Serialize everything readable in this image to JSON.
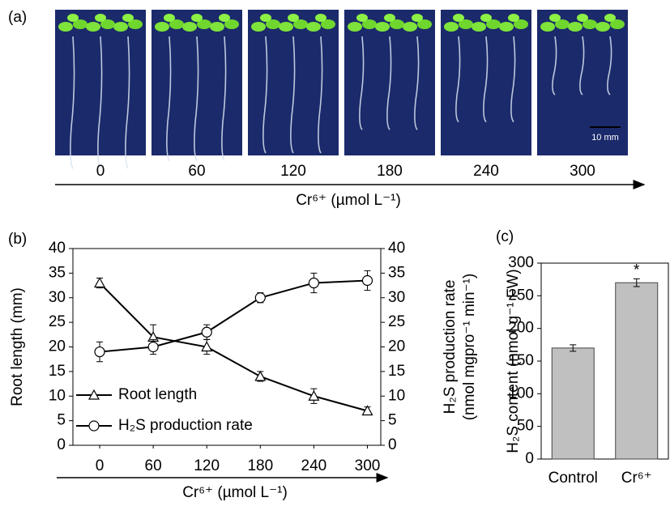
{
  "panel_a": {
    "label": "(a)",
    "categories": [
      "0",
      "60",
      "120",
      "180",
      "240",
      "300"
    ],
    "axis_label": "Cr⁶⁺ (µmol L⁻¹)",
    "scale_bar": "10 mm"
  },
  "chart_data": [
    {
      "type": "line",
      "label": "(b)",
      "x": [
        0,
        60,
        120,
        180,
        240,
        300
      ],
      "xlim": [
        -30,
        315
      ],
      "xticks": [
        0,
        60,
        120,
        180,
        240,
        300
      ],
      "xlabel": "Cr⁶⁺ (µmol L⁻¹)",
      "ylabel": "Root length (mm)",
      "y2label": [
        "H₂S production rate",
        "(nmol mgpro⁻¹ min⁻¹)"
      ],
      "ylim": [
        0,
        40
      ],
      "yticks": [
        0,
        5,
        10,
        15,
        20,
        25,
        30,
        35,
        40
      ],
      "y2lim": [
        0,
        40
      ],
      "y2ticks": [
        0,
        5,
        10,
        15,
        20,
        25,
        30,
        35,
        40
      ],
      "legend": "lower left",
      "series": [
        {
          "name": "Root length",
          "color": "#000000",
          "marker": "triangle",
          "values": [
            33,
            22,
            20,
            14,
            10,
            7
          ],
          "errors": [
            1,
            2.5,
            1.5,
            1,
            1.5,
            0.8
          ]
        },
        {
          "name": "H₂S production rate",
          "color": "#000000",
          "marker": "circle",
          "axis": "y2",
          "values": [
            19,
            20,
            23,
            30,
            33,
            33.5
          ],
          "errors": [
            2,
            1.5,
            1.5,
            1,
            2,
            2
          ]
        }
      ]
    },
    {
      "type": "bar",
      "label": "(c)",
      "categories": [
        "Control",
        "Cr⁶⁺"
      ],
      "values": [
        170,
        270
      ],
      "errors": [
        5,
        6
      ],
      "color": "#c0c0c0",
      "annotation": "*",
      "ylabel": "H₂S content (nmol g⁻¹ FW)",
      "ylim": [
        0,
        300
      ],
      "yticks": [
        0,
        50,
        100,
        150,
        200,
        250,
        300
      ]
    }
  ]
}
